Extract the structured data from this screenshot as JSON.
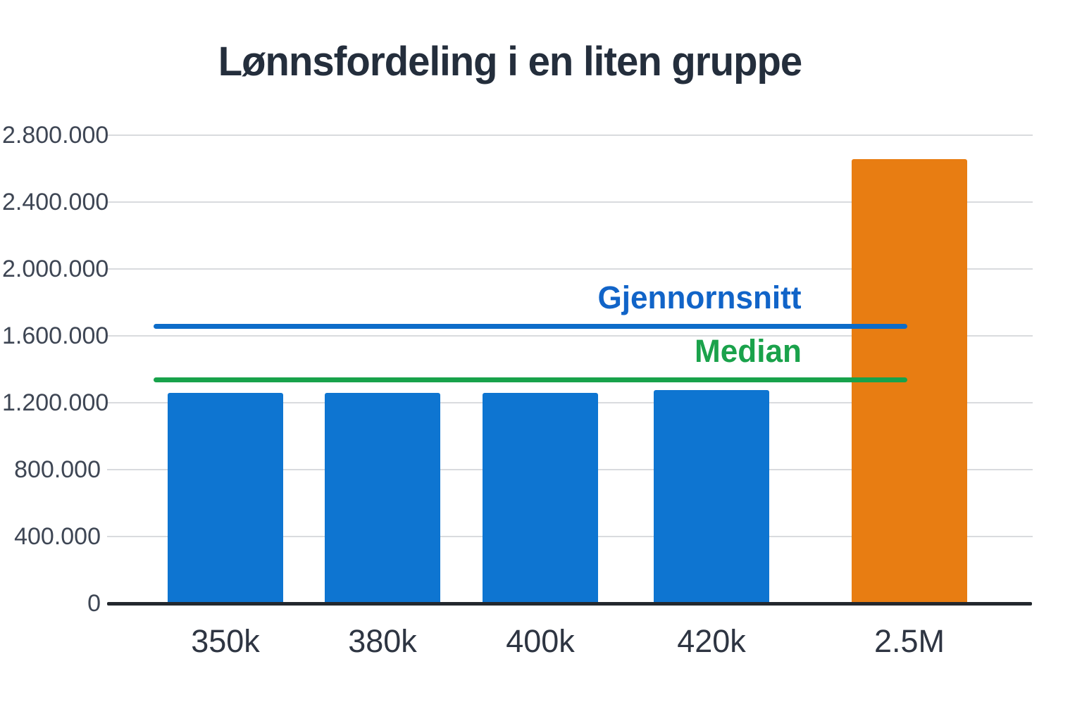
{
  "chart_data": {
    "type": "bar",
    "title": "Lønnsfordeling i en liten gruppe",
    "categories": [
      "350k",
      "380k",
      "400k",
      "420k",
      "2.5M"
    ],
    "values": [
      1260000,
      1260000,
      1260000,
      1275000,
      2655000
    ],
    "bar_colors": [
      "#0e75d1",
      "#0e75d1",
      "#0e75d1",
      "#0e75d1",
      "#e87d12"
    ],
    "xlabel": "",
    "ylabel": "",
    "ylim": [
      0,
      2800000
    ],
    "ytick_interval": 400000,
    "yticks": [
      {
        "value": 0,
        "label": "0"
      },
      {
        "value": 400000,
        "label": "400.000"
      },
      {
        "value": 800000,
        "label": "800.000"
      },
      {
        "value": 1200000,
        "label": "1.200.000"
      },
      {
        "value": 1600000,
        "label": "1.600.000"
      },
      {
        "value": 2000000,
        "label": "2.000.000"
      },
      {
        "value": 2400000,
        "label": "2.400.000"
      },
      {
        "value": 2800000,
        "label": "2.800.000"
      }
    ],
    "grid": "horizontal-gridlines-on",
    "legend_position": "none",
    "reference_lines": [
      {
        "name": "Gjennornsnitt",
        "value": 1655000,
        "line_color": "#0d6cc9",
        "label_color": "#1164c8"
      },
      {
        "name": "Median",
        "value": 1335000,
        "line_color": "#18a24b",
        "label_color": "#1aa24b"
      }
    ]
  },
  "colors": {
    "background": "#ffffff",
    "title_text": "#242e3c",
    "axis_line": "#23282e",
    "gridline": "#d9dbde",
    "y_tick_text": "#3e4654",
    "x_tick_text": "#2e3542",
    "blue_bar": "#0e75d1",
    "orange_bar": "#e87d12",
    "average_line": "#0d6cc9",
    "median_line": "#18a24b"
  }
}
